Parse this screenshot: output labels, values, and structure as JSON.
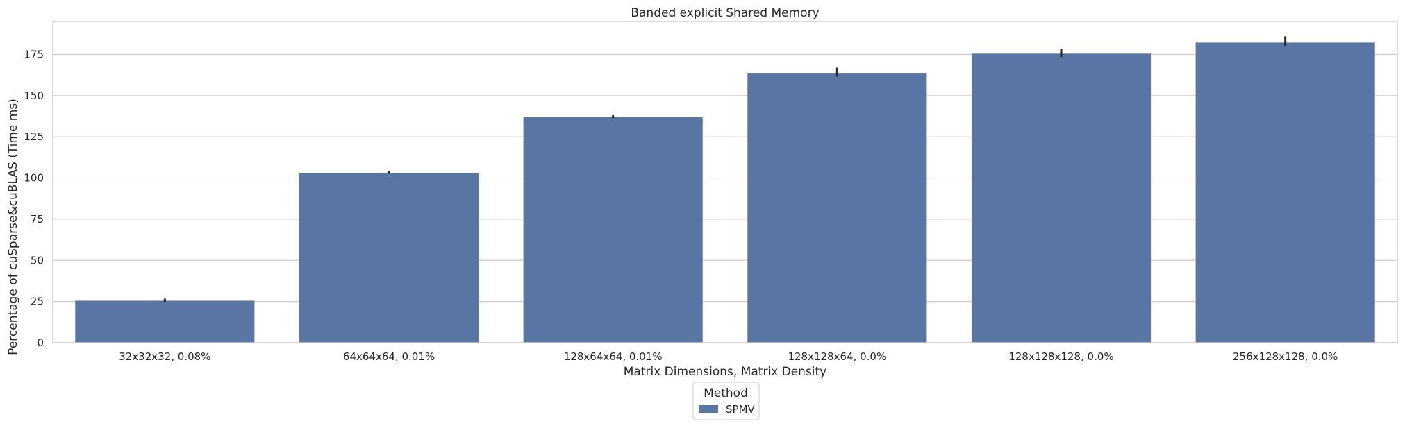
{
  "chart_data": {
    "type": "bar",
    "title": "Banded explicit Shared Memory",
    "xlabel": "Matrix Dimensions, Matrix Density",
    "ylabel": "Percentage of cuSparse&cuBLAS (Time ms)",
    "categories": [
      "32x32x32, 0.08%",
      "64x64x64, 0.01%",
      "128x64x64, 0.01%",
      "128x128x64, 0.0%",
      "128x128x128, 0.0%",
      "256x128x128, 0.0%"
    ],
    "series": [
      {
        "name": "SPMV",
        "values": [
          25.5,
          103.2,
          137.0,
          163.8,
          175.5,
          182.2
        ],
        "error_low": [
          24.8,
          102.6,
          136.3,
          161.5,
          173.5,
          180.0
        ],
        "error_high": [
          26.8,
          104.3,
          138.2,
          167.0,
          178.5,
          186.0
        ],
        "color": "#5975a4"
      }
    ],
    "ylim": [
      0,
      195
    ],
    "yticks": [
      0,
      25,
      50,
      75,
      100,
      125,
      150,
      175
    ],
    "grid": true,
    "legend": {
      "title": "Method",
      "position": "bottom-center"
    },
    "colors": {
      "bar": "#5975a4",
      "error_bar": "#262626",
      "grid": "#cccccc",
      "axes_edge": "#cccccc",
      "background": "#ffffff"
    }
  }
}
